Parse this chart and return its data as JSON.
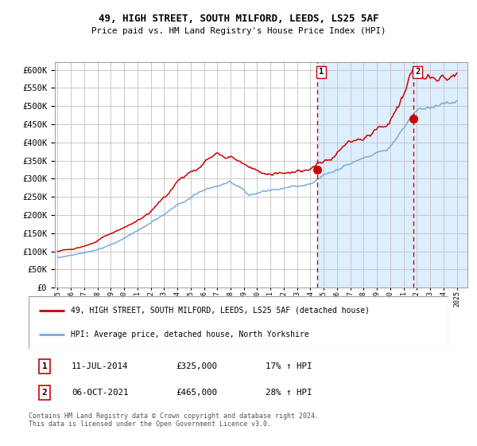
{
  "title_line1": "49, HIGH STREET, SOUTH MILFORD, LEEDS, LS25 5AF",
  "title_line2": "Price paid vs. HM Land Registry's House Price Index (HPI)",
  "legend_line1": "49, HIGH STREET, SOUTH MILFORD, LEEDS, LS25 5AF (detached house)",
  "legend_line2": "HPI: Average price, detached house, North Yorkshire",
  "annotation1_label": "1",
  "annotation1_date": "11-JUL-2014",
  "annotation1_price": "£325,000",
  "annotation1_hpi": "17% ↑ HPI",
  "annotation2_label": "2",
  "annotation2_date": "06-OCT-2021",
  "annotation2_price": "£465,000",
  "annotation2_hpi": "28% ↑ HPI",
  "footer": "Contains HM Land Registry data © Crown copyright and database right 2024.\nThis data is licensed under the Open Government Licence v3.0.",
  "red_color": "#cc0000",
  "blue_color": "#7aabdb",
  "bg_color": "#ddeeff",
  "plot_bg": "#ffffff",
  "grid_color": "#c8c8c8",
  "ylim": [
    0,
    620000
  ],
  "yticks": [
    0,
    50000,
    100000,
    150000,
    200000,
    250000,
    300000,
    350000,
    400000,
    450000,
    500000,
    550000,
    600000
  ],
  "start_year": 1995,
  "end_year": 2025,
  "sale1_year": 2014.53,
  "sale1_value": 325000,
  "sale2_year": 2021.76,
  "sale2_value": 465000
}
